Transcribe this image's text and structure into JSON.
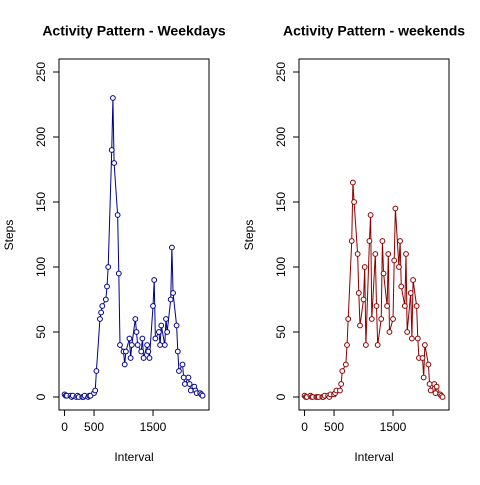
{
  "chart_data": [
    {
      "type": "line",
      "title": "Activity Pattern - Weekdays",
      "xlabel": "Interval",
      "ylabel": "Steps",
      "x": [
        0,
        20,
        40,
        100,
        120,
        140,
        200,
        220,
        240,
        300,
        320,
        340,
        400,
        420,
        440,
        500,
        520,
        540,
        600,
        620,
        640,
        700,
        720,
        740,
        800,
        820,
        840,
        900,
        920,
        940,
        1000,
        1020,
        1040,
        1100,
        1120,
        1140,
        1200,
        1220,
        1240,
        1300,
        1320,
        1340,
        1400,
        1420,
        1440,
        1500,
        1520,
        1540,
        1600,
        1620,
        1640,
        1700,
        1720,
        1740,
        1800,
        1820,
        1840,
        1900,
        1920,
        1940,
        2000,
        2020,
        2040,
        2100,
        2120,
        2140,
        2200,
        2220,
        2240,
        2300,
        2320,
        2340
      ],
      "series": [
        {
          "name": "Weekdays",
          "color": "#00008b",
          "values": [
            2,
            1,
            1,
            1,
            0,
            1,
            0,
            1,
            0,
            0,
            0,
            1,
            0,
            1,
            1,
            3,
            5,
            20,
            60,
            65,
            70,
            75,
            85,
            100,
            190,
            230,
            180,
            140,
            95,
            40,
            35,
            25,
            35,
            45,
            30,
            40,
            60,
            50,
            40,
            35,
            45,
            30,
            40,
            35,
            30,
            70,
            90,
            45,
            50,
            40,
            55,
            40,
            60,
            50,
            75,
            115,
            80,
            55,
            35,
            20,
            25,
            15,
            10,
            15,
            10,
            5,
            8,
            5,
            3,
            3,
            2,
            1
          ]
        }
      ],
      "xlim": [
        -94.2,
        2449.2
      ],
      "ylim": [
        -10,
        260
      ],
      "xticks": [
        0,
        500,
        1500
      ],
      "yticks": [
        0,
        50,
        100,
        150,
        200,
        250
      ]
    },
    {
      "type": "line",
      "title": "Activity Pattern - weekends",
      "xlabel": "Interval",
      "ylabel": "Steps",
      "x": [
        0,
        20,
        40,
        100,
        120,
        140,
        200,
        220,
        240,
        300,
        320,
        340,
        400,
        420,
        440,
        500,
        520,
        540,
        600,
        620,
        640,
        700,
        720,
        740,
        800,
        820,
        840,
        900,
        920,
        940,
        1000,
        1020,
        1040,
        1100,
        1120,
        1140,
        1200,
        1220,
        1240,
        1300,
        1320,
        1340,
        1400,
        1420,
        1440,
        1500,
        1520,
        1540,
        1600,
        1620,
        1640,
        1700,
        1720,
        1740,
        1800,
        1820,
        1840,
        1900,
        1920,
        1940,
        2000,
        2020,
        2040,
        2100,
        2120,
        2140,
        2200,
        2220,
        2240,
        2300,
        2320,
        2340
      ],
      "series": [
        {
          "name": "weekends",
          "color": "#8b0000",
          "values": [
            1,
            0,
            0,
            1,
            0,
            0,
            0,
            0,
            0,
            0,
            0,
            1,
            1,
            0,
            2,
            2,
            3,
            5,
            5,
            10,
            20,
            25,
            40,
            60,
            120,
            165,
            150,
            110,
            80,
            55,
            75,
            100,
            40,
            120,
            140,
            60,
            110,
            70,
            40,
            60,
            120,
            95,
            70,
            110,
            50,
            60,
            105,
            145,
            100,
            120,
            85,
            70,
            110,
            50,
            80,
            45,
            90,
            70,
            45,
            30,
            30,
            15,
            40,
            25,
            10,
            5,
            10,
            3,
            8,
            2,
            1,
            0
          ]
        }
      ],
      "xlim": [
        -94.2,
        2449.2
      ],
      "ylim": [
        -10,
        260
      ],
      "xticks": [
        0,
        500,
        1500
      ],
      "yticks": [
        0,
        50,
        100,
        150,
        200,
        250
      ]
    }
  ]
}
